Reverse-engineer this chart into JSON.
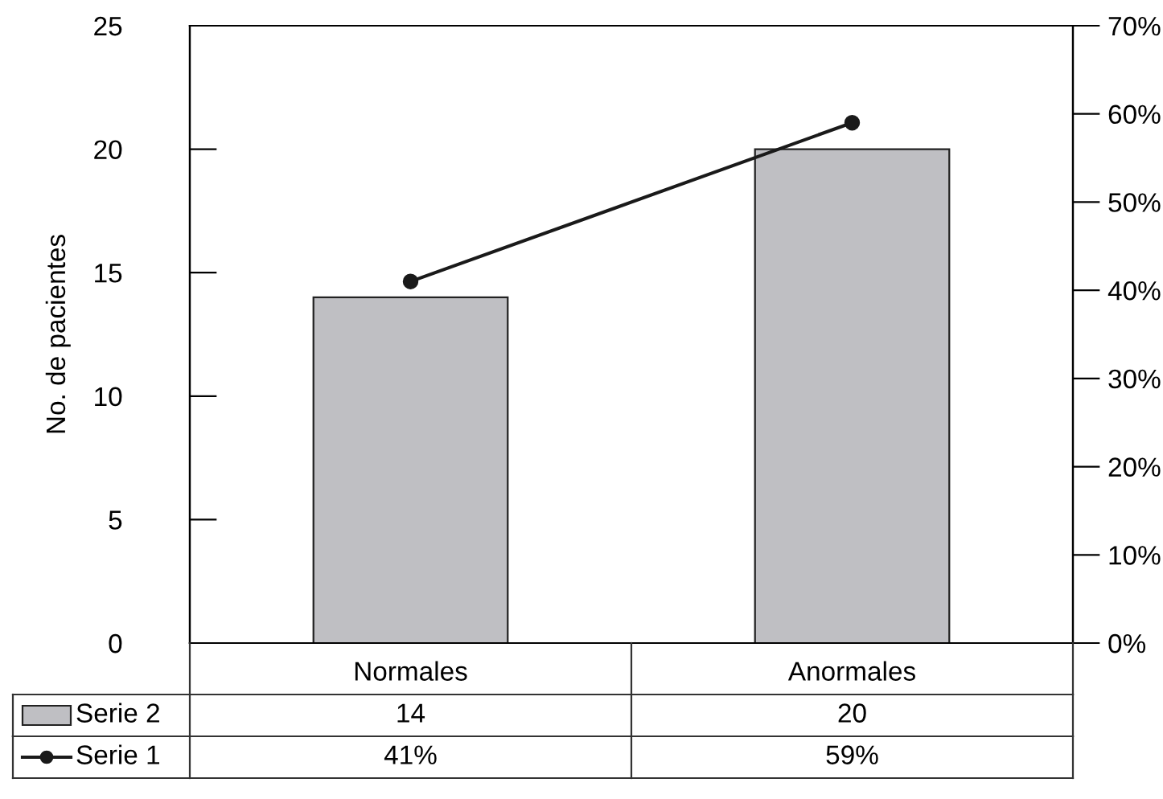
{
  "chart_data": {
    "type": "bar",
    "ylabel": "No. de pacientes",
    "categories": [
      "Normales",
      "Anormales"
    ],
    "series": [
      {
        "name": "Serie 2",
        "color": "#bfbfc3",
        "values": [
          14,
          20
        ],
        "value_labels": [
          "14",
          "20"
        ]
      },
      {
        "name": "Serie 1",
        "type": "line",
        "axis": "y2",
        "color": "#1a1a1a",
        "values": [
          41,
          59
        ],
        "value_labels": [
          "41%",
          "59%"
        ],
        "marker": "circle"
      }
    ],
    "ylim": [
      0,
      25
    ],
    "yticks": [
      0,
      5,
      10,
      15,
      20,
      25
    ],
    "y2lim": [
      0,
      70
    ],
    "y2ticks": [
      {
        "value": 0,
        "label": "0%"
      },
      {
        "value": 10,
        "label": "10%"
      },
      {
        "value": 20,
        "label": "20%"
      },
      {
        "value": 30,
        "label": "30%"
      },
      {
        "value": 40,
        "label": "40%"
      },
      {
        "value": 50,
        "label": "50%"
      },
      {
        "value": 60,
        "label": "60%"
      },
      {
        "value": 70,
        "label": "70%"
      }
    ],
    "grid": false,
    "legend": "bottom",
    "line_style": "solid"
  }
}
